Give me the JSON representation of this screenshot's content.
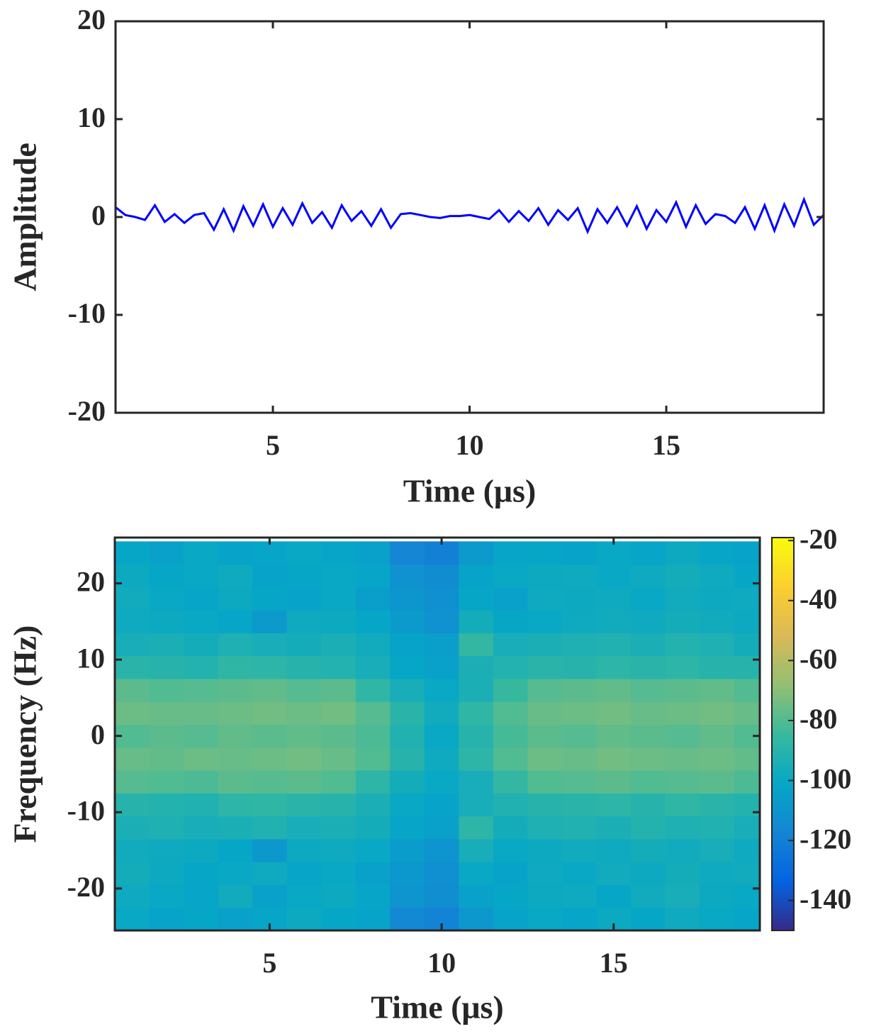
{
  "chart_data": [
    {
      "type": "line",
      "xlabel": "Time (μs)",
      "ylabel": "Amplitude",
      "xlim": [
        1,
        19
      ],
      "ylim": [
        -20,
        20
      ],
      "xticks": [
        5,
        10,
        15
      ],
      "yticks": [
        -20,
        -10,
        0,
        10,
        20
      ],
      "color": "#0000ff",
      "x": [
        1,
        1.25,
        1.5,
        1.75,
        2,
        2.25,
        2.5,
        2.75,
        3,
        3.25,
        3.5,
        3.75,
        4,
        4.25,
        4.5,
        4.75,
        5,
        5.25,
        5.5,
        5.75,
        6,
        6.25,
        6.5,
        6.75,
        7,
        7.25,
        7.5,
        7.75,
        8,
        8.25,
        8.5,
        8.75,
        9,
        9.25,
        9.5,
        9.75,
        10,
        10.25,
        10.5,
        10.75,
        11,
        11.25,
        11.5,
        11.75,
        12,
        12.25,
        12.5,
        12.75,
        13,
        13.25,
        13.5,
        13.75,
        14,
        14.25,
        14.5,
        14.75,
        15,
        15.25,
        15.5,
        15.75,
        16,
        16.25,
        16.5,
        16.75,
        17,
        17.25,
        17.5,
        17.75,
        18,
        18.25,
        18.5,
        18.75,
        19
      ],
      "values": [
        1.0,
        0.2,
        0.0,
        -0.3,
        1.2,
        -0.5,
        0.3,
        -0.6,
        0.2,
        0.4,
        -1.3,
        0.8,
        -1.4,
        1.1,
        -0.9,
        1.3,
        -1.0,
        0.9,
        -0.8,
        1.4,
        -0.6,
        0.5,
        -1.1,
        1.2,
        -0.4,
        0.6,
        -0.9,
        0.8,
        -1.1,
        0.3,
        0.4,
        0.2,
        0.0,
        -0.1,
        0.1,
        0.1,
        0.2,
        0.0,
        -0.2,
        0.7,
        -0.5,
        0.6,
        -0.4,
        0.9,
        -0.8,
        0.7,
        -0.3,
        0.9,
        -1.5,
        0.8,
        -0.6,
        1.0,
        -0.9,
        1.1,
        -1.2,
        0.7,
        -0.5,
        1.5,
        -1.0,
        1.2,
        -0.7,
        0.3,
        0.1,
        -0.6,
        1.0,
        -1.2,
        1.2,
        -1.4,
        1.3,
        -0.9,
        1.8,
        -0.8,
        0.2
      ]
    },
    {
      "type": "heatmap",
      "xlabel": "Time (μs)",
      "ylabel": "Frequency (Hz)",
      "colormap": "parula",
      "xlim": [
        0.5,
        19.25
      ],
      "ylim": [
        -25.5,
        26
      ],
      "xticks": [
        5,
        10,
        15
      ],
      "yticks": [
        -20,
        -10,
        0,
        10,
        20
      ],
      "clim": [
        -150,
        -19
      ],
      "cticks": [
        -140,
        -120,
        -100,
        -80,
        -60,
        -40,
        -20
      ],
      "x": [
        1,
        2,
        3,
        4,
        5,
        6,
        7,
        8,
        9,
        10,
        11,
        12,
        13,
        14,
        15,
        16,
        17,
        18,
        19
      ],
      "y": [
        -24,
        -21,
        -18,
        -15,
        -12,
        -9,
        -6,
        -3,
        0,
        3,
        6,
        9,
        12,
        15,
        18,
        21,
        24
      ],
      "z": [
        [
          -100,
          -103,
          -101,
          -104,
          -102,
          -99,
          -101,
          -103,
          -116,
          -118,
          -108,
          -103,
          -100,
          -102,
          -99,
          -101,
          -98,
          -100,
          -102
        ],
        [
          -98,
          -100,
          -102,
          -97,
          -104,
          -100,
          -99,
          -102,
          -110,
          -113,
          -104,
          -101,
          -99,
          -98,
          -101,
          -97,
          -95,
          -99,
          -100
        ],
        [
          -96,
          -99,
          -101,
          -100,
          -98,
          -102,
          -100,
          -104,
          -108,
          -112,
          -100,
          -103,
          -98,
          -100,
          -97,
          -99,
          -96,
          -98,
          -97
        ],
        [
          -97,
          -98,
          -99,
          -101,
          -108,
          -99,
          -98,
          -100,
          -106,
          -110,
          -95,
          -100,
          -99,
          -97,
          -98,
          -96,
          -97,
          -95,
          -98
        ],
        [
          -94,
          -93,
          -95,
          -94,
          -92,
          -95,
          -94,
          -96,
          -102,
          -104,
          -88,
          -96,
          -93,
          -92,
          -94,
          -91,
          -93,
          -92,
          -95
        ],
        [
          -90,
          -91,
          -92,
          -88,
          -87,
          -89,
          -90,
          -94,
          -100,
          -103,
          -95,
          -92,
          -90,
          -89,
          -88,
          -90,
          -87,
          -89,
          -91
        ],
        [
          -79,
          -80,
          -81,
          -78,
          -79,
          -78,
          -80,
          -88,
          -96,
          -100,
          -95,
          -86,
          -80,
          -79,
          -78,
          -80,
          -79,
          -78,
          -81
        ],
        [
          -76,
          -77,
          -75,
          -76,
          -75,
          -74,
          -76,
          -80,
          -90,
          -98,
          -88,
          -80,
          -75,
          -76,
          -74,
          -75,
          -76,
          -75,
          -77
        ],
        [
          -80,
          -78,
          -79,
          -77,
          -78,
          -77,
          -78,
          -81,
          -92,
          -100,
          -90,
          -82,
          -78,
          -79,
          -77,
          -78,
          -79,
          -77,
          -80
        ],
        [
          -75,
          -76,
          -76,
          -75,
          -74,
          -75,
          -74,
          -79,
          -89,
          -97,
          -87,
          -80,
          -76,
          -75,
          -74,
          -76,
          -75,
          -74,
          -76
        ],
        [
          -78,
          -80,
          -79,
          -78,
          -77,
          -79,
          -78,
          -87,
          -95,
          -100,
          -94,
          -85,
          -79,
          -78,
          -77,
          -79,
          -78,
          -77,
          -80
        ],
        [
          -89,
          -90,
          -91,
          -87,
          -88,
          -90,
          -91,
          -95,
          -101,
          -104,
          -94,
          -91,
          -89,
          -90,
          -88,
          -89,
          -88,
          -90,
          -90
        ],
        [
          -95,
          -94,
          -96,
          -93,
          -95,
          -96,
          -94,
          -97,
          -103,
          -105,
          -86,
          -95,
          -94,
          -93,
          -92,
          -94,
          -91,
          -93,
          -96
        ],
        [
          -98,
          -99,
          -100,
          -102,
          -107,
          -98,
          -99,
          -101,
          -107,
          -111,
          -96,
          -101,
          -100,
          -98,
          -97,
          -98,
          -96,
          -97,
          -99
        ],
        [
          -97,
          -100,
          -102,
          -99,
          -101,
          -103,
          -100,
          -105,
          -109,
          -112,
          -101,
          -104,
          -98,
          -99,
          -98,
          -100,
          -97,
          -99,
          -98
        ],
        [
          -99,
          -101,
          -100,
          -98,
          -103,
          -101,
          -100,
          -102,
          -111,
          -114,
          -103,
          -100,
          -99,
          -98,
          -100,
          -98,
          -96,
          -98,
          -101
        ],
        [
          -101,
          -104,
          -100,
          -103,
          -102,
          -100,
          -102,
          -104,
          -117,
          -119,
          -107,
          -102,
          -101,
          -103,
          -100,
          -102,
          -99,
          -101,
          -103
        ]
      ]
    }
  ]
}
